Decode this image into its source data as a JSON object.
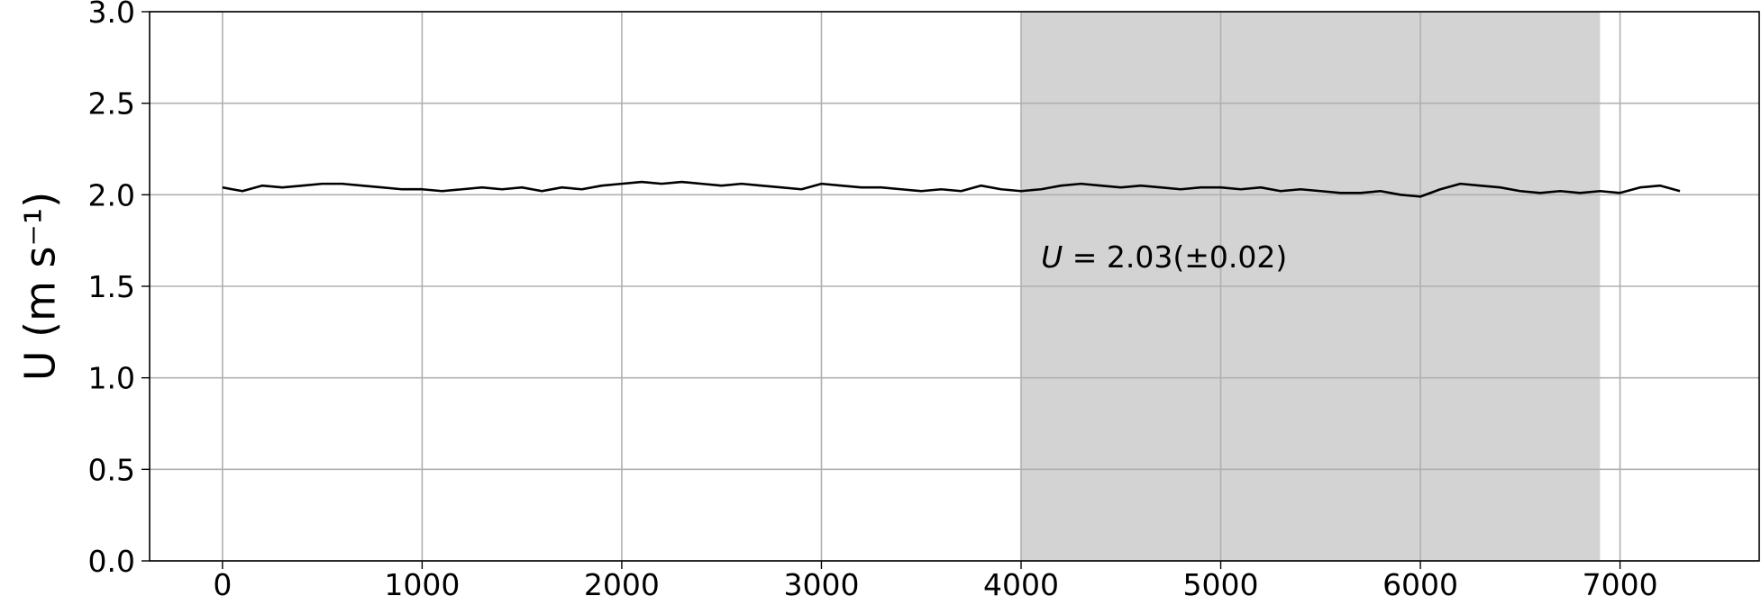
{
  "chart_data": {
    "type": "line",
    "ylabel": "U (m s⁻¹)",
    "annotation": {
      "symbol": "U",
      "text": " = 2.03(±0.02)"
    },
    "shaded_span": [
      4000,
      6900
    ],
    "shade_color": "#d3d3d3",
    "grid": true,
    "xlim": [
      -365,
      7697
    ],
    "ylim": [
      0,
      3
    ],
    "xticks": [
      0,
      1000,
      2000,
      3000,
      4000,
      5000,
      6000,
      7000
    ],
    "yticks": [
      {
        "value": 0,
        "label": "0.0"
      },
      {
        "value": 0.5,
        "label": "0.5"
      },
      {
        "value": 1,
        "label": "1.0"
      },
      {
        "value": 1.5,
        "label": "1.5"
      },
      {
        "value": 2,
        "label": "2.0"
      },
      {
        "value": 2.5,
        "label": "2.5"
      },
      {
        "value": 3,
        "label": "3.0"
      }
    ],
    "x": [
      0,
      100,
      200,
      300,
      400,
      500,
      600,
      700,
      800,
      900,
      1000,
      1100,
      1200,
      1300,
      1400,
      1500,
      1600,
      1700,
      1800,
      1900,
      2000,
      2100,
      2200,
      2300,
      2400,
      2500,
      2600,
      2700,
      2800,
      2900,
      3000,
      3100,
      3200,
      3300,
      3400,
      3500,
      3600,
      3700,
      3800,
      3900,
      4000,
      4100,
      4200,
      4300,
      4400,
      4500,
      4600,
      4700,
      4800,
      4900,
      5000,
      5100,
      5200,
      5300,
      5400,
      5500,
      5600,
      5700,
      5800,
      5900,
      6000,
      6100,
      6200,
      6300,
      6400,
      6500,
      6600,
      6700,
      6800,
      6900,
      7000,
      7100,
      7200,
      7300
    ],
    "series": [
      {
        "color": "#000000",
        "values": [
          2.04,
          2.02,
          2.05,
          2.04,
          2.05,
          2.06,
          2.06,
          2.05,
          2.04,
          2.03,
          2.03,
          2.02,
          2.03,
          2.04,
          2.03,
          2.04,
          2.02,
          2.04,
          2.03,
          2.05,
          2.06,
          2.07,
          2.06,
          2.07,
          2.06,
          2.05,
          2.06,
          2.05,
          2.04,
          2.03,
          2.06,
          2.05,
          2.04,
          2.04,
          2.03,
          2.02,
          2.03,
          2.02,
          2.05,
          2.03,
          2.02,
          2.03,
          2.05,
          2.06,
          2.05,
          2.04,
          2.05,
          2.04,
          2.03,
          2.04,
          2.04,
          2.03,
          2.04,
          2.02,
          2.03,
          2.02,
          2.01,
          2.01,
          2.02,
          2.0,
          1.99,
          2.03,
          2.06,
          2.05,
          2.04,
          2.02,
          2.01,
          2.02,
          2.01,
          2.02,
          2.01,
          2.04,
          2.05,
          2.02
        ]
      }
    ]
  }
}
